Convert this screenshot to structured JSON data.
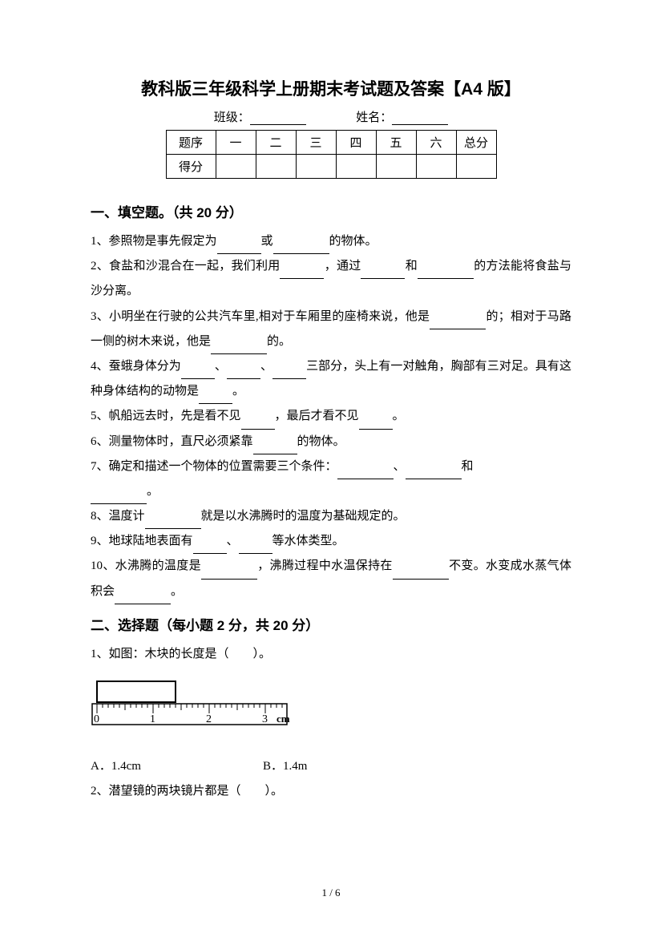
{
  "title": "教科版三年级科学上册期末考试题及答案【A4 版】",
  "info": {
    "class_label": "班级：",
    "name_label": "姓名："
  },
  "score_table": {
    "row1": [
      "题序",
      "一",
      "二",
      "三",
      "四",
      "五",
      "六",
      "总分"
    ],
    "row2_label": "得分"
  },
  "section1": {
    "heading": "一、填空题。（共 20 分）",
    "q1_a": "1、参照物是事先假定为",
    "q1_b": "或",
    "q1_c": "的物体。",
    "q2_a": "2、食盐和沙混合在一起，我们利用",
    "q2_b": "，通过",
    "q2_c": "和",
    "q2_d": "的方法能将食盐与沙分离。",
    "q3_a": "3、小明坐在行驶的公共汽车里,相对于车厢里的座椅来说，他是",
    "q3_b": "的；相对于马路一侧的树木来说，他是",
    "q3_c": "的。",
    "q4_a": "4、蚕蛾身体分为",
    "q4_b": "、",
    "q4_c": "、",
    "q4_d": "三部分，头上有一对触角，胸部有三对足。具有这种身体结构的动物是",
    "q4_e": "。",
    "q5_a": "5、帆船远去时，先是看不见",
    "q5_b": "，最后才看不见",
    "q5_c": "。",
    "q6_a": "6、测量物体时，直尺必须紧靠",
    "q6_b": "的物体。",
    "q7_a": "7、确定和描述一个物体的位置需要三个条件：",
    "q7_b": "、",
    "q7_c": "和",
    "q7_d": "。",
    "q8_a": "8、温度计",
    "q8_b": "就是以水沸腾时的温度为基础规定的。",
    "q9_a": "9、地球陆地表面有",
    "q9_b": "、",
    "q9_c": "等水体类型。",
    "q10_a": "10、水沸腾的温度是",
    "q10_b": "，沸腾过程中水温保持在",
    "q10_c": "不变。水变成水蒸气体积会",
    "q10_d": "。"
  },
  "section2": {
    "heading": "二、选择题（每小题 2 分，共 20 分）",
    "q1": "1、如图：木块的长度是（　　）。",
    "q1_choice_a": "A．1.4cm",
    "q1_choice_b": "B．1.4m",
    "q2": "2、潜望镜的两块镜片都是（　　）。"
  },
  "ruler": {
    "ticks": [
      "0",
      "1",
      "2",
      "3"
    ],
    "unit": "cm",
    "block_start": 0,
    "block_end": 1.4,
    "ruler_length": 3.3,
    "colors": {
      "block_fill": "#ffffff",
      "block_stroke": "#000000",
      "ruler_bg": "#ffffff",
      "ruler_stroke": "#000000",
      "tick_color": "#000000",
      "text_color": "#000000"
    }
  },
  "footer": "1 / 6"
}
